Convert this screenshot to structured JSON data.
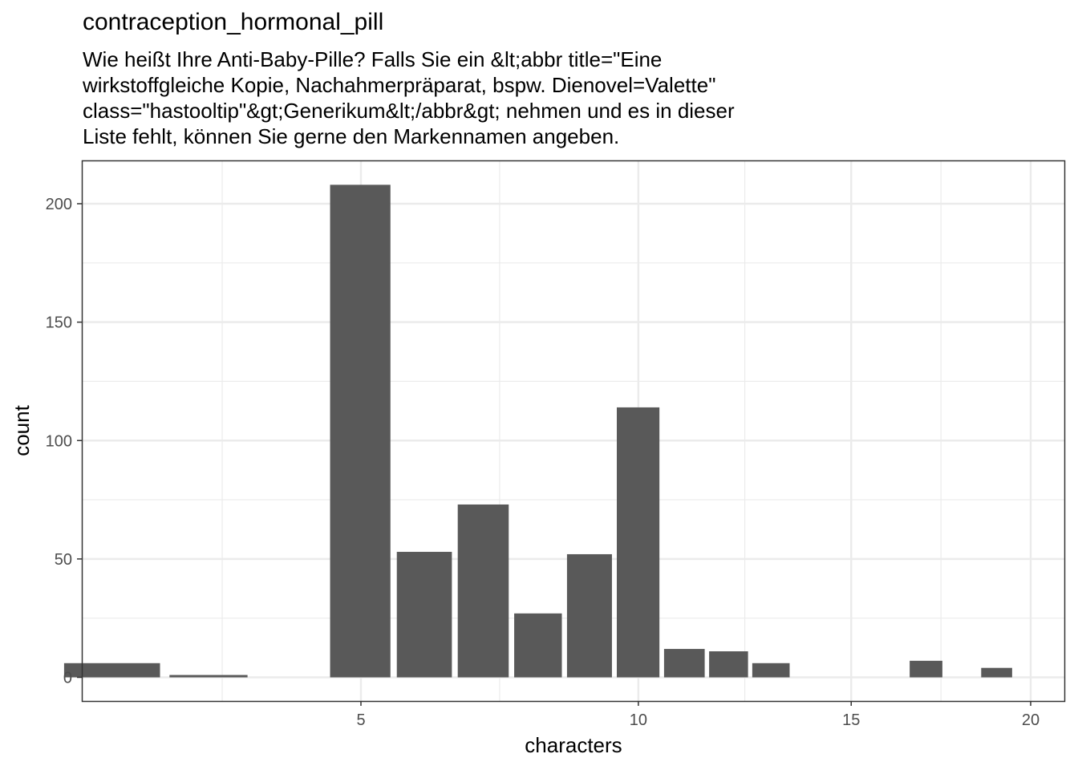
{
  "chart_data": {
    "type": "bar",
    "title": "contraception_hormonal_pill",
    "subtitle_lines": [
      "Wie heißt Ihre Anti-Baby-Pille? Falls Sie ein &lt;abbr title=\"Eine",
      "wirkstoffgleiche Kopie, Nachahmerpräparat, bspw. Dienovel=Valette\"",
      "class=\"hastooltip\"&gt;Generikum&lt;/abbr&gt; nehmen und es in dieser",
      "Liste fehlt, können Sie gerne den Markennamen angeben."
    ],
    "xlabel": "characters",
    "ylabel": "count",
    "x_scale": "sqrt",
    "x_ticks": [
      5,
      10,
      15,
      20
    ],
    "y_ticks": [
      0,
      50,
      100,
      150,
      200
    ],
    "ylim": [
      -10,
      218
    ],
    "grid": true,
    "bars": [
      {
        "x": 2,
        "count": 6
      },
      {
        "x": 3,
        "count": 1
      },
      {
        "x": 5,
        "count": 208
      },
      {
        "x": 6,
        "count": 53
      },
      {
        "x": 7,
        "count": 73
      },
      {
        "x": 8,
        "count": 27
      },
      {
        "x": 9,
        "count": 52
      },
      {
        "x": 10,
        "count": 114
      },
      {
        "x": 11,
        "count": 12
      },
      {
        "x": 12,
        "count": 11
      },
      {
        "x": 13,
        "count": 6
      },
      {
        "x": 17,
        "count": 7
      },
      {
        "x": 19,
        "count": 4
      }
    ]
  },
  "colors": {
    "bar": "#595959",
    "grid": "#ebebeb",
    "panel_border": "#333333",
    "tick_label": "#4d4d4d"
  }
}
